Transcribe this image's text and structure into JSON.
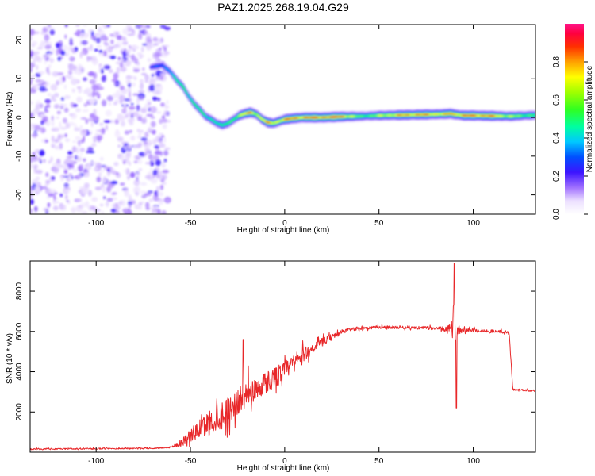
{
  "figure_title": "PAZ1.2025.268.19.04.G29",
  "colors": {
    "snr_line": "#e8282a",
    "axis": "#000000",
    "background": "#ffffff"
  },
  "chart_data": [
    {
      "type": "heatmap",
      "name": "spectrogram",
      "xlabel": "Height of straight line (km)",
      "ylabel": "Frequency (Hz)",
      "xlim": [
        -135,
        133
      ],
      "ylim": [
        -25,
        24
      ],
      "xticks": [
        -100,
        -50,
        0,
        50,
        100
      ],
      "yticks": [
        -20,
        -10,
        0,
        10,
        20
      ],
      "noise_region_x": [
        -135,
        -62
      ],
      "ridge": {
        "x": [
          -71,
          -65,
          -61,
          -57,
          -54,
          -51,
          -48,
          -45,
          -42,
          -39,
          -36,
          -33,
          -30,
          -27,
          -24,
          -21,
          -18,
          -15,
          -12,
          -9,
          -6,
          -3,
          0,
          5,
          10,
          20,
          30,
          40,
          50,
          60,
          70,
          80,
          86,
          88,
          90,
          95,
          100,
          110,
          120,
          133
        ],
        "y": [
          13,
          13.5,
          12,
          9.5,
          8,
          5.5,
          3.5,
          2,
          0.3,
          -0.5,
          -1.5,
          -2,
          -1.5,
          -0.5,
          0.5,
          1,
          1.3,
          0.8,
          -0.5,
          -1.3,
          -1.5,
          -1,
          -0.5,
          -0.2,
          0,
          0,
          0.2,
          0.3,
          0.5,
          0.6,
          0.7,
          0.8,
          0.9,
          1.0,
          0.8,
          0.5,
          0.5,
          0.4,
          0.3,
          0.6
        ],
        "amp": [
          0.3,
          0.35,
          0.45,
          0.5,
          0.55,
          0.55,
          0.55,
          0.55,
          0.5,
          0.55,
          0.55,
          0.5,
          0.6,
          0.65,
          0.7,
          0.8,
          0.9,
          0.75,
          0.8,
          0.85,
          0.8,
          0.8,
          0.9,
          0.9,
          0.92,
          0.95,
          0.95,
          0.6,
          0.7,
          0.85,
          0.9,
          0.85,
          0.8,
          0.95,
          0.85,
          0.9,
          0.95,
          0.9,
          0.7,
          0.6
        ]
      },
      "colorbar": {
        "label": "Normalized spectral amplitude",
        "range": [
          0,
          1
        ],
        "ticks": [
          "0.0",
          "0.2",
          "0.4",
          "0.6",
          "0.8"
        ],
        "tick_values": [
          0,
          0.2,
          0.4,
          0.6,
          0.8
        ]
      }
    },
    {
      "type": "line",
      "name": "snr",
      "xlabel": "Height of straight line (km)",
      "ylabel": "SNR (10 * v/v)",
      "xlim": [
        -135,
        133
      ],
      "ylim": [
        0,
        9500
      ],
      "xticks": [
        -100,
        -50,
        0,
        50,
        100
      ],
      "yticks": [
        2000,
        4000,
        6000,
        8000
      ],
      "series": [
        {
          "name": "SNR",
          "x": [
            -135,
            -100,
            -70,
            -60,
            -55,
            -50,
            -45,
            -40,
            -35,
            -30,
            -25,
            -20,
            -15,
            -10,
            -5,
            0,
            5,
            10,
            15,
            20,
            25,
            30,
            35,
            40,
            50,
            60,
            70,
            80,
            85,
            88,
            90,
            92,
            95,
            100,
            110,
            119,
            121,
            125,
            133
          ],
          "y": [
            150,
            170,
            190,
            250,
            450,
            800,
            1100,
            1400,
            1700,
            2000,
            2400,
            2800,
            3100,
            3400,
            3700,
            4000,
            4400,
            4800,
            5150,
            5450,
            5700,
            5950,
            6100,
            6150,
            6200,
            6200,
            6180,
            6150,
            6100,
            6100,
            6100,
            6050,
            6100,
            6050,
            6000,
            5950,
            3100,
            3100,
            3050
          ],
          "jitter": [
            40,
            40,
            40,
            60,
            250,
            400,
            600,
            800,
            900,
            900,
            850,
            850,
            750,
            700,
            650,
            600,
            500,
            450,
            300,
            250,
            200,
            150,
            120,
            100,
            100,
            100,
            100,
            100,
            150,
            300,
            900,
            300,
            150,
            120,
            100,
            100,
            60,
            60,
            60
          ]
        }
      ],
      "annotations": [
        {
          "x": -22,
          "y": 5600,
          "note": "spike"
        },
        {
          "x": 90,
          "y": 9400,
          "note": "spike"
        },
        {
          "x": 91,
          "y": 2200,
          "note": "dip"
        }
      ]
    }
  ]
}
